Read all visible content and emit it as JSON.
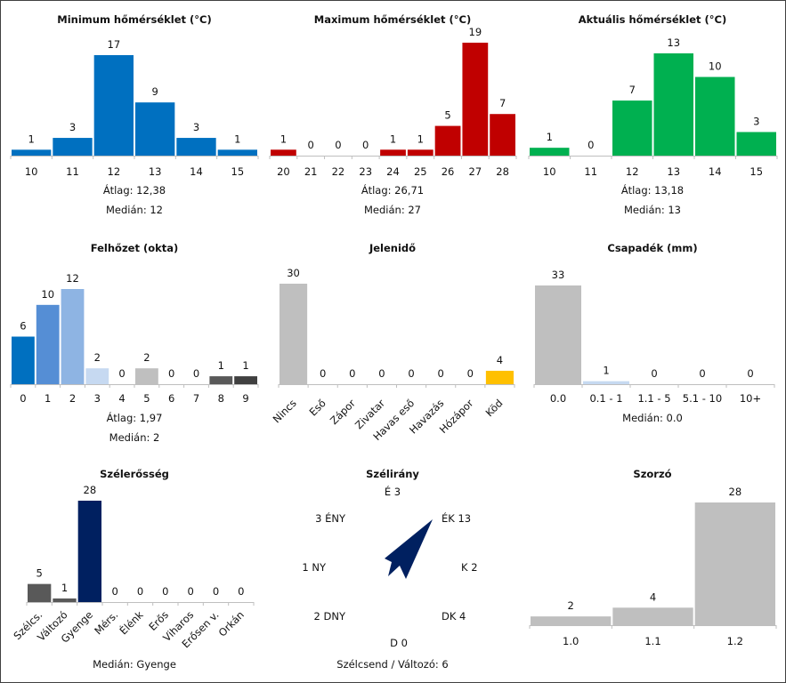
{
  "chart_data": [
    {
      "type": "bar",
      "title": "Minimum hőmérséklet (°C)",
      "categories": [
        "10",
        "11",
        "12",
        "13",
        "14",
        "15"
      ],
      "values": [
        1,
        3,
        17,
        9,
        3,
        1
      ],
      "colors": [
        "#0070c0"
      ],
      "stats": [
        "Átlag: 12,38",
        "Medián: 12"
      ]
    },
    {
      "type": "bar",
      "title": "Maximum hőmérséklet (°C)",
      "categories": [
        "20",
        "21",
        "22",
        "23",
        "24",
        "25",
        "26",
        "27",
        "28"
      ],
      "values": [
        1,
        0,
        0,
        0,
        1,
        1,
        5,
        19,
        7
      ],
      "colors": [
        "#c00000"
      ],
      "stats": [
        "Átlag: 26,71",
        "Medián: 27"
      ]
    },
    {
      "type": "bar",
      "title": "Aktuális hőmérséklet (°C)",
      "categories": [
        "10",
        "11",
        "12",
        "13",
        "14",
        "15"
      ],
      "values": [
        1,
        0,
        7,
        13,
        10,
        3
      ],
      "colors": [
        "#00b050"
      ],
      "stats": [
        "Átlag: 13,18",
        "Medián: 13"
      ]
    },
    {
      "type": "bar",
      "title": "Felhőzet (okta)",
      "categories": [
        "0",
        "1",
        "2",
        "3",
        "4",
        "5",
        "6",
        "7",
        "8",
        "9"
      ],
      "values": [
        6,
        10,
        12,
        2,
        0,
        2,
        0,
        0,
        1,
        1
      ],
      "colors": [
        "#0070c0",
        "#558ed5",
        "#8eb4e3",
        "#c6d9f1",
        "#c6d9f1",
        "#bfbfbf",
        "#bfbfbf",
        "#bfbfbf",
        "#595959",
        "#404040"
      ],
      "stats": [
        "Átlag: 1,97",
        "Medián: 2"
      ]
    },
    {
      "type": "bar",
      "title": "Jelenidő",
      "categories": [
        "Nincs",
        "Eső",
        "Zápor",
        "Zivatar",
        "Havas eső",
        "Havazás",
        "Hózápor",
        "Köd"
      ],
      "values": [
        30,
        0,
        0,
        0,
        0,
        0,
        0,
        4
      ],
      "colors": [
        "#bfbfbf",
        "#bfbfbf",
        "#bfbfbf",
        "#bfbfbf",
        "#bfbfbf",
        "#bfbfbf",
        "#bfbfbf",
        "#ffc000"
      ],
      "stats": []
    },
    {
      "type": "bar",
      "title": "Csapadék (mm)",
      "categories": [
        "0.0",
        "0.1 - 1",
        "1.1 - 5",
        "5.1 - 10",
        "10+"
      ],
      "values": [
        33,
        1,
        0,
        0,
        0
      ],
      "colors": [
        "#bfbfbf",
        "#c6d9f1",
        "#c6d9f1",
        "#c6d9f1",
        "#c6d9f1"
      ],
      "stats": [
        "Medián: 0.0"
      ]
    },
    {
      "type": "bar",
      "title": "Szélerősség",
      "categories": [
        "Szélcs.",
        "Változó",
        "Gyenge",
        "Mérs.",
        "Élénk",
        "Erős",
        "Viharos",
        "Erősen v.",
        "Orkán"
      ],
      "values": [
        5,
        1,
        28,
        0,
        0,
        0,
        0,
        0,
        0
      ],
      "colors": [
        "#595959",
        "#595959",
        "#002060",
        "#002060",
        "#002060",
        "#002060",
        "#002060",
        "#002060",
        "#002060"
      ],
      "stats": [
        "Medián: Gyenge"
      ]
    },
    {
      "type": "rose",
      "title": "Szélirány",
      "directions": [
        {
          "label": "É",
          "value": 3
        },
        {
          "label": "ÉK",
          "value": 13
        },
        {
          "label": "K",
          "value": 2
        },
        {
          "label": "DK",
          "value": 4
        },
        {
          "label": "D",
          "value": 0
        },
        {
          "label": "DNY",
          "value": 2
        },
        {
          "label": "NY",
          "value": 1
        },
        {
          "label": "ÉNY",
          "value": 3
        }
      ],
      "dominant": "ÉK",
      "color": "#002060",
      "stats": [
        "Szélcsend / Változó: 6"
      ]
    },
    {
      "type": "bar",
      "title": "Szorzó",
      "categories": [
        "1.0",
        "1.1",
        "1.2"
      ],
      "values": [
        2,
        4,
        28
      ],
      "colors": [
        "#bfbfbf"
      ],
      "stats": []
    }
  ]
}
